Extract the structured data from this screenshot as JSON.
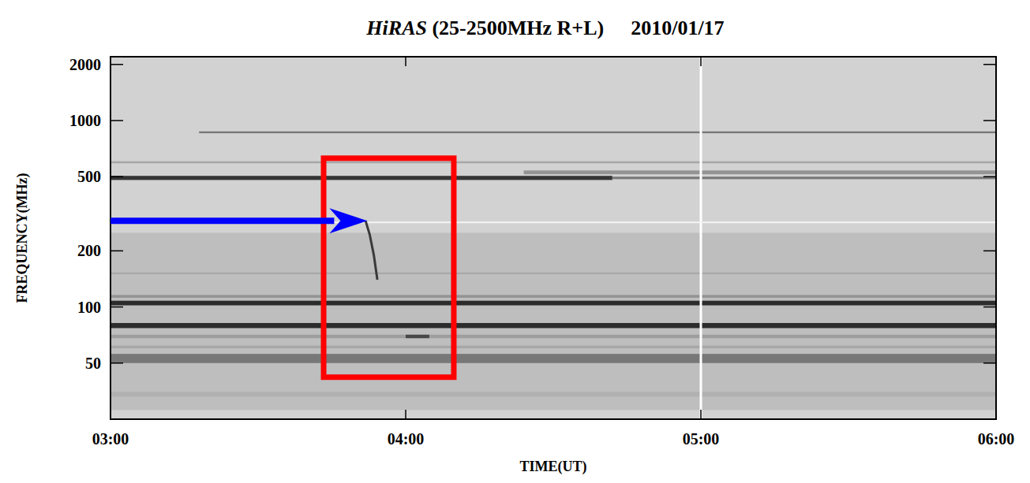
{
  "chart_data": {
    "type": "spectrogram",
    "title": "HiRAS (25-2500MHz R+L)",
    "subtitle": "2010/01/17",
    "x_label": "TIME(UT)",
    "y_label": "FREQUENCY(MHz)",
    "log": "y",
    "xlim": [
      3,
      6
    ],
    "ylim": [
      25,
      2200
    ],
    "xticks": [
      {
        "value": 3,
        "label": "03:00"
      },
      {
        "value": 4,
        "label": "04:00"
      },
      {
        "value": 5,
        "label": "05:00"
      },
      {
        "value": 6,
        "label": "06:00"
      }
    ],
    "yticks": [
      50,
      100,
      200,
      500,
      1000,
      2000
    ],
    "bands": [
      {
        "low": 28,
        "high": 250,
        "start": 3,
        "end": 6,
        "intensity": 0.08
      },
      {
        "low": 480,
        "high": 505,
        "start": 3,
        "end": 4.7,
        "intensity": 0.8
      },
      {
        "low": 485,
        "high": 500,
        "start": 4.7,
        "end": 6,
        "intensity": 0.45
      },
      {
        "low": 515,
        "high": 540,
        "start": 4.4,
        "end": 6,
        "intensity": 0.3
      },
      {
        "low": 855,
        "high": 875,
        "start": 3.3,
        "end": 6,
        "intensity": 0.45
      },
      {
        "low": 590,
        "high": 605,
        "start": 3,
        "end": 6,
        "intensity": 0.2
      },
      {
        "low": 102,
        "high": 108,
        "start": 3,
        "end": 6,
        "intensity": 0.85
      },
      {
        "low": 77,
        "high": 82,
        "start": 3,
        "end": 6,
        "intensity": 0.85
      },
      {
        "low": 50,
        "high": 56,
        "start": 3,
        "end": 6,
        "intensity": 0.45
      },
      {
        "low": 68,
        "high": 71,
        "start": 3,
        "end": 6,
        "intensity": 0.25
      },
      {
        "low": 60,
        "high": 62,
        "start": 3,
        "end": 6,
        "intensity": 0.2
      },
      {
        "low": 112,
        "high": 116,
        "start": 3,
        "end": 6,
        "intensity": 0.3
      },
      {
        "low": 150,
        "high": 153,
        "start": 3,
        "end": 6,
        "intensity": 0.2
      },
      {
        "low": 33,
        "high": 35,
        "start": 3,
        "end": 6,
        "intensity": 0.15
      },
      {
        "low": 68,
        "high": 71,
        "start": 4.0,
        "end": 4.08,
        "intensity": 0.7
      }
    ],
    "burst": {
      "time": [
        3.864,
        3.878,
        3.892,
        3.904
      ],
      "frequency": [
        290,
        245,
        190,
        140
      ]
    },
    "data_gaps": {
      "time": [
        5.0
      ],
      "frequency": [
        284
      ]
    },
    "annotations": [
      {
        "type": "box",
        "x": [
          3.722,
          4.163
        ],
        "y": [
          42,
          628
        ],
        "color": "#ff0000"
      },
      {
        "type": "arrow",
        "x": [
          3,
          3.87
        ],
        "y": [
          290,
          290
        ],
        "color": "#0000ff"
      }
    ]
  }
}
